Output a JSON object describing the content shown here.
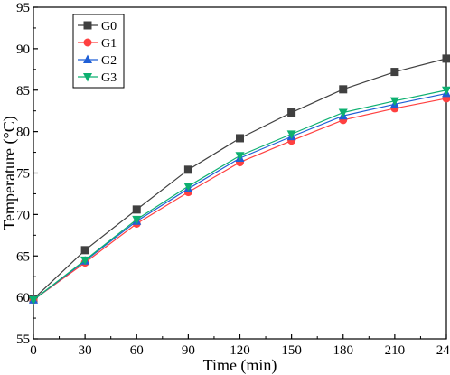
{
  "chart_data": {
    "type": "line",
    "xlabel": "Time (min)",
    "ylabel": "Temperature (°C)",
    "x": [
      0,
      30,
      60,
      90,
      120,
      150,
      180,
      210,
      240
    ],
    "xlim": [
      0,
      240
    ],
    "ylim": [
      55,
      95
    ],
    "xticks": [
      "0",
      "30",
      "60",
      "90",
      "120",
      "150",
      "180",
      "210",
      "240"
    ],
    "yticks": [
      "55",
      "60",
      "65",
      "70",
      "75",
      "80",
      "85",
      "90",
      "95"
    ],
    "grid": false,
    "legend_position": "top-left",
    "series": [
      {
        "name": "G0",
        "color": "#404040",
        "marker": "square",
        "values": [
          59.8,
          65.7,
          70.6,
          75.4,
          79.2,
          82.3,
          85.1,
          87.2,
          88.8
        ]
      },
      {
        "name": "G1",
        "color": "#ff4040",
        "marker": "circle",
        "values": [
          59.7,
          64.2,
          68.9,
          72.7,
          76.3,
          78.9,
          81.4,
          82.8,
          84.0
        ]
      },
      {
        "name": "G2",
        "color": "#1f5fd6",
        "marker": "triangle-up",
        "values": [
          59.7,
          64.4,
          69.2,
          73.1,
          76.8,
          79.4,
          81.9,
          83.3,
          84.6
        ]
      },
      {
        "name": "G3",
        "color": "#0db070",
        "marker": "triangle-down",
        "values": [
          59.7,
          64.5,
          69.4,
          73.4,
          77.1,
          79.7,
          82.3,
          83.7,
          85.0
        ]
      }
    ]
  }
}
